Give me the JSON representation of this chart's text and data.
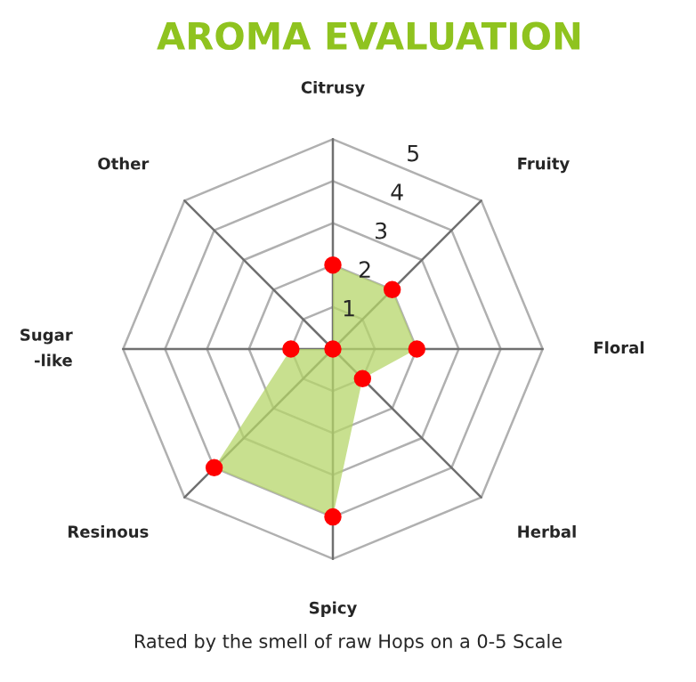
{
  "chart_data": {
    "type": "radar",
    "title": "AROMA EVALUATION",
    "annotations": [
      "Rated by the smell of raw Hops on a 0-5 Scale"
    ],
    "categories": [
      "Citrusy",
      "Fruity",
      "Floral",
      "Herbal",
      "Spicy",
      "Resinous",
      "Sugar\n-like",
      "Other"
    ],
    "series": [
      {
        "color": "#b5d56a",
        "colors": [
          "#ff0000",
          "#ff0000",
          "#ff0000",
          "#ff0000",
          "#ff0000",
          "#ff0000",
          "#ff0000",
          "#ff0000"
        ],
        "values": [
          2,
          2,
          2,
          1,
          4,
          4,
          1,
          0
        ]
      }
    ],
    "ylim": [
      0,
      5
    ],
    "yticks": [
      1,
      2,
      3,
      4,
      5
    ],
    "grid": true,
    "marker": "circle"
  }
}
